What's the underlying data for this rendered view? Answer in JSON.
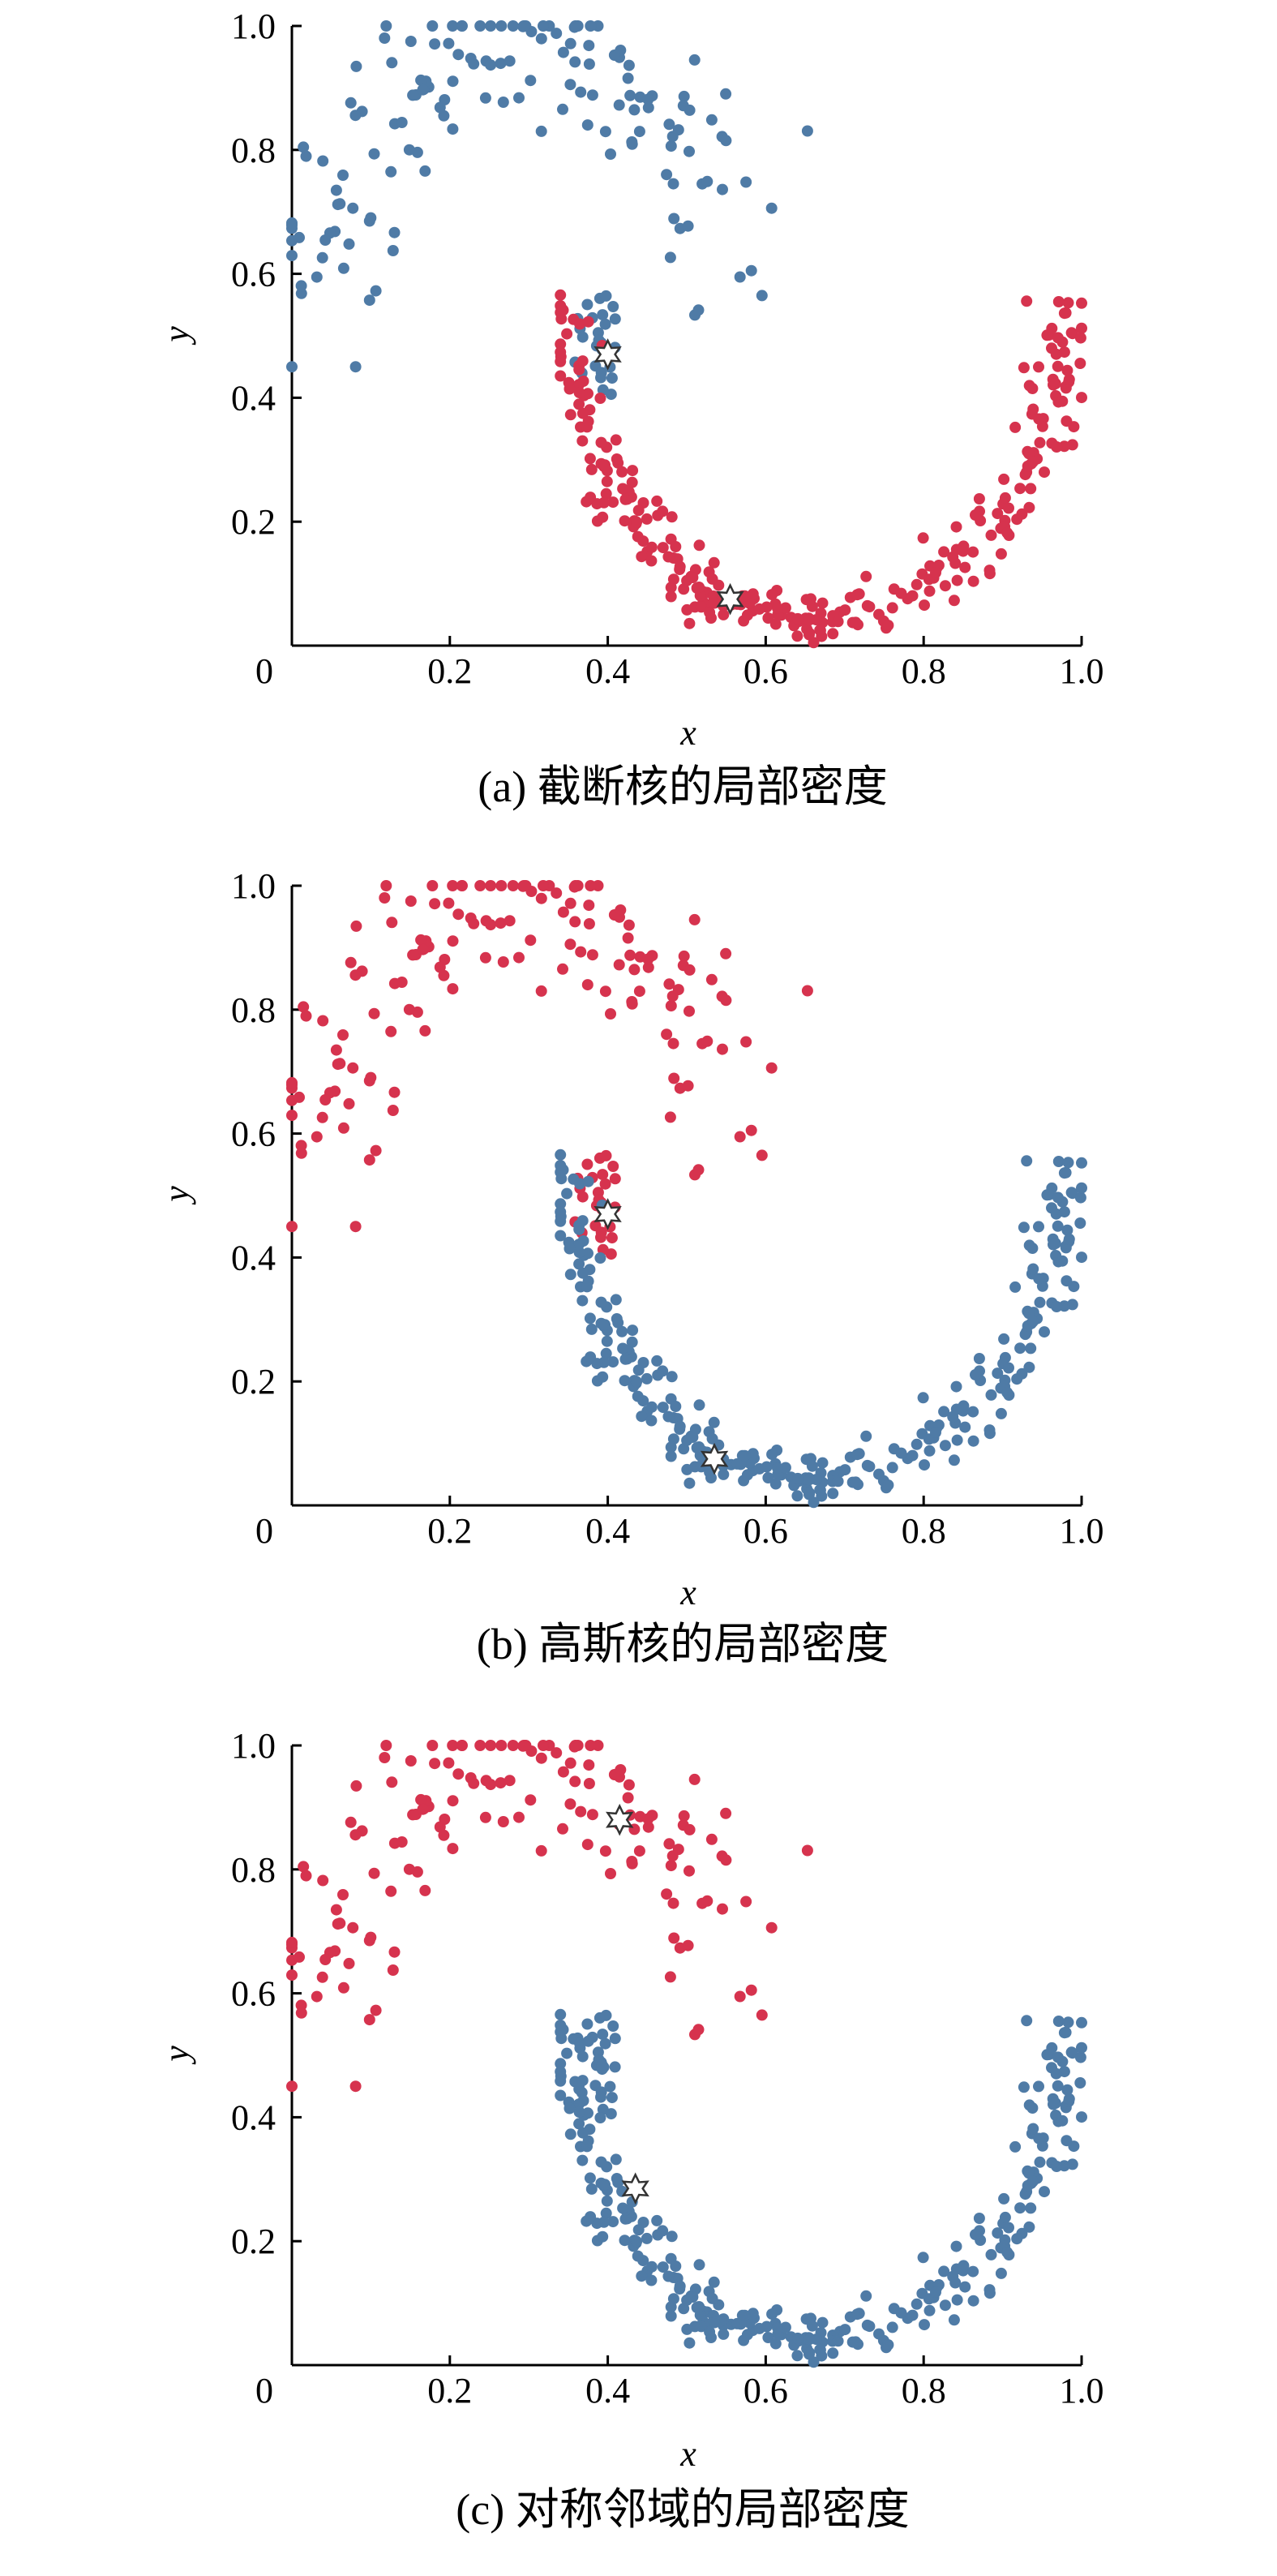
{
  "figure": {
    "colors": {
      "red": "#d6334e",
      "blue": "#4f7ba6",
      "star_fill": "#ffffff",
      "star_stroke": "#333333",
      "axis": "#000000"
    }
  },
  "chart_data": [
    {
      "type": "scatter",
      "caption": "(a) 截断核的局部密度",
      "xlabel": "x",
      "ylabel": "y",
      "xlim": [
        0,
        1.0
      ],
      "ylim": [
        0,
        1.0
      ],
      "x_ticks": [
        0,
        0.2,
        0.4,
        0.6,
        0.8,
        1.0
      ],
      "x_tick_labels": [
        "0",
        "0.2",
        "0.4",
        "0.6",
        "0.8",
        "1.0"
      ],
      "y_ticks": [
        0.2,
        0.4,
        0.6,
        0.8,
        1.0
      ],
      "y_tick_labels": [
        "0.2",
        "0.4",
        "0.6",
        "0.8",
        "1.0"
      ],
      "grid": false,
      "moon_colors": {
        "upper": "blue",
        "lower": "red"
      },
      "bridge_color": "blue",
      "stars": [
        [
          0.4,
          0.47
        ],
        [
          0.555,
          0.075
        ]
      ]
    },
    {
      "type": "scatter",
      "caption": "(b) 高斯核的局部密度",
      "xlabel": "x",
      "ylabel": "y",
      "xlim": [
        0,
        1.0
      ],
      "ylim": [
        0,
        1.0
      ],
      "x_ticks": [
        0,
        0.2,
        0.4,
        0.6,
        0.8,
        1.0
      ],
      "x_tick_labels": [
        "0",
        "0.2",
        "0.4",
        "0.6",
        "0.8",
        "1.0"
      ],
      "y_ticks": [
        0.2,
        0.4,
        0.6,
        0.8,
        1.0
      ],
      "y_tick_labels": [
        "0.2",
        "0.4",
        "0.6",
        "0.8",
        "1.0"
      ],
      "grid": false,
      "moon_colors": {
        "upper": "red",
        "lower": "blue"
      },
      "bridge_color": "red",
      "stars": [
        [
          0.4,
          0.47
        ],
        [
          0.535,
          0.075
        ]
      ]
    },
    {
      "type": "scatter",
      "caption": "(c) 对称邻域的局部密度",
      "xlabel": "x",
      "ylabel": "y",
      "xlim": [
        0,
        1.0
      ],
      "ylim": [
        0,
        1.0
      ],
      "x_ticks": [
        0,
        0.2,
        0.4,
        0.6,
        0.8,
        1.0
      ],
      "x_tick_labels": [
        "0",
        "0.2",
        "0.4",
        "0.6",
        "0.8",
        "1.0"
      ],
      "y_ticks": [
        0.2,
        0.4,
        0.6,
        0.8,
        1.0
      ],
      "y_tick_labels": [
        "0.2",
        "0.4",
        "0.6",
        "0.8",
        "1.0"
      ],
      "grid": false,
      "moon_colors": {
        "upper": "red",
        "lower": "blue"
      },
      "bridge_color": "blue",
      "stars": [
        [
          0.415,
          0.88
        ],
        [
          0.435,
          0.285
        ]
      ]
    }
  ]
}
